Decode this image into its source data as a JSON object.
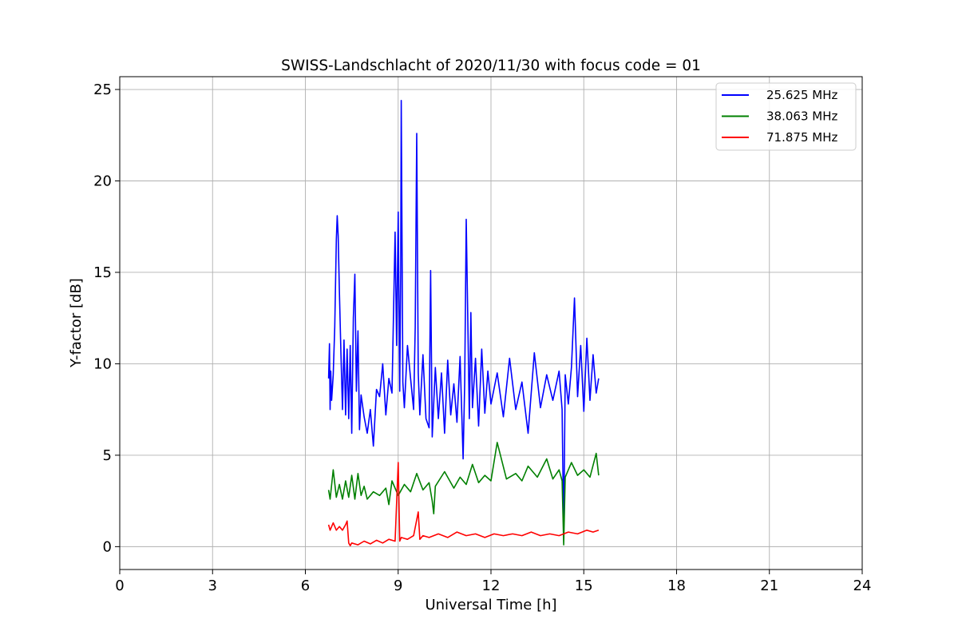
{
  "chart_data": {
    "type": "line",
    "title": "SWISS-Landschlacht of 2020/11/30 with focus code = 01",
    "xlabel": "Universal Time [h]",
    "ylabel": "Y-factor [dB]",
    "xlim": [
      0,
      24
    ],
    "ylim": [
      -1.25,
      25.7
    ],
    "xticks": [
      0,
      3,
      6,
      9,
      12,
      15,
      18,
      21,
      24
    ],
    "yticks": [
      0,
      5,
      10,
      15,
      20,
      25
    ],
    "grid": true,
    "legend_position": "top-right",
    "series": [
      {
        "name": "25.625 MHz",
        "color": "#0000ff",
        "x": [
          6.75,
          6.78,
          6.8,
          6.82,
          6.85,
          6.9,
          6.95,
          7.0,
          7.03,
          7.06,
          7.1,
          7.15,
          7.2,
          7.25,
          7.3,
          7.35,
          7.4,
          7.45,
          7.5,
          7.55,
          7.6,
          7.65,
          7.7,
          7.75,
          7.8,
          7.9,
          8.0,
          8.1,
          8.2,
          8.3,
          8.4,
          8.5,
          8.6,
          8.7,
          8.8,
          8.9,
          8.95,
          9.0,
          9.05,
          9.08,
          9.1,
          9.15,
          9.2,
          9.3,
          9.4,
          9.5,
          9.55,
          9.6,
          9.65,
          9.7,
          9.8,
          9.9,
          10.0,
          10.05,
          10.1,
          10.2,
          10.3,
          10.4,
          10.5,
          10.6,
          10.7,
          10.8,
          10.9,
          11.0,
          11.1,
          11.15,
          11.2,
          11.3,
          11.35,
          11.4,
          11.5,
          11.6,
          11.7,
          11.8,
          11.9,
          12.0,
          12.2,
          12.4,
          12.6,
          12.8,
          13.0,
          13.2,
          13.4,
          13.6,
          13.8,
          14.0,
          14.2,
          14.3,
          14.35,
          14.4,
          14.5,
          14.6,
          14.7,
          14.8,
          14.9,
          15.0,
          15.1,
          15.2,
          15.3,
          15.4,
          15.48
        ],
        "y": [
          9.2,
          11.1,
          7.5,
          9.6,
          8.0,
          9.4,
          12.0,
          16.8,
          18.1,
          17.0,
          14.0,
          10.5,
          7.5,
          11.3,
          7.2,
          10.8,
          7.0,
          11.0,
          6.2,
          12.5,
          14.9,
          8.5,
          11.8,
          6.4,
          8.3,
          7.1,
          6.2,
          7.5,
          5.5,
          8.6,
          8.2,
          10.0,
          7.2,
          9.2,
          8.4,
          17.2,
          11.0,
          18.3,
          8.5,
          15.0,
          24.4,
          9.0,
          7.6,
          11.0,
          9.2,
          7.5,
          12.0,
          22.6,
          9.5,
          7.2,
          10.5,
          7.0,
          6.5,
          15.1,
          6.0,
          9.8,
          7.0,
          9.5,
          6.2,
          10.2,
          7.2,
          8.9,
          6.8,
          10.4,
          4.8,
          9.0,
          17.9,
          7.0,
          12.8,
          7.6,
          10.3,
          6.6,
          10.8,
          7.3,
          9.6,
          7.8,
          9.5,
          7.1,
          10.3,
          7.5,
          9.0,
          6.2,
          10.6,
          7.6,
          9.4,
          8.0,
          9.6,
          7.5,
          0.5,
          9.4,
          7.8,
          9.8,
          13.6,
          8.2,
          11.0,
          7.4,
          11.4,
          8.0,
          10.5,
          8.4,
          9.2
        ]
      },
      {
        "name": "38.063 MHz",
        "color": "#008000",
        "x": [
          6.75,
          6.8,
          6.9,
          7.0,
          7.1,
          7.2,
          7.3,
          7.4,
          7.5,
          7.6,
          7.7,
          7.8,
          7.9,
          8.0,
          8.2,
          8.4,
          8.6,
          8.7,
          8.8,
          9.0,
          9.2,
          9.4,
          9.6,
          9.8,
          10.0,
          10.1,
          10.15,
          10.2,
          10.5,
          10.8,
          11.0,
          11.2,
          11.4,
          11.6,
          11.8,
          12.0,
          12.2,
          12.5,
          12.8,
          13.0,
          13.2,
          13.5,
          13.8,
          14.0,
          14.2,
          14.3,
          14.35,
          14.4,
          14.6,
          14.8,
          15.0,
          15.2,
          15.4,
          15.48
        ],
        "y": [
          3.1,
          2.6,
          4.2,
          2.7,
          3.4,
          2.6,
          3.6,
          2.7,
          3.9,
          2.6,
          4.0,
          2.8,
          3.3,
          2.6,
          3.0,
          2.8,
          3.2,
          2.3,
          3.6,
          2.8,
          3.4,
          3.0,
          4.0,
          3.1,
          3.5,
          2.5,
          1.8,
          3.3,
          4.1,
          3.2,
          3.8,
          3.4,
          4.5,
          3.5,
          3.9,
          3.6,
          5.7,
          3.7,
          4.0,
          3.6,
          4.4,
          3.8,
          4.8,
          3.7,
          4.2,
          3.6,
          0.1,
          3.8,
          4.6,
          3.9,
          4.2,
          3.8,
          5.1,
          3.9
        ]
      },
      {
        "name": "71.875 MHz",
        "color": "#ff0000",
        "x": [
          6.75,
          6.8,
          6.9,
          7.0,
          7.1,
          7.2,
          7.3,
          7.35,
          7.4,
          7.45,
          7.5,
          7.7,
          7.9,
          8.1,
          8.3,
          8.5,
          8.7,
          8.9,
          9.0,
          9.05,
          9.1,
          9.3,
          9.5,
          9.65,
          9.7,
          9.8,
          10.0,
          10.3,
          10.6,
          10.9,
          11.2,
          11.5,
          11.8,
          12.1,
          12.4,
          12.7,
          13.0,
          13.3,
          13.6,
          13.9,
          14.2,
          14.5,
          14.8,
          15.1,
          15.3,
          15.48
        ],
        "y": [
          1.2,
          0.9,
          1.3,
          0.9,
          1.1,
          0.9,
          1.2,
          1.4,
          0.2,
          0.05,
          0.2,
          0.1,
          0.3,
          0.15,
          0.35,
          0.2,
          0.4,
          0.3,
          4.6,
          0.3,
          0.5,
          0.4,
          0.6,
          1.9,
          0.4,
          0.6,
          0.5,
          0.7,
          0.5,
          0.8,
          0.6,
          0.7,
          0.5,
          0.7,
          0.6,
          0.7,
          0.6,
          0.8,
          0.6,
          0.7,
          0.6,
          0.8,
          0.7,
          0.9,
          0.8,
          0.9
        ]
      }
    ]
  }
}
